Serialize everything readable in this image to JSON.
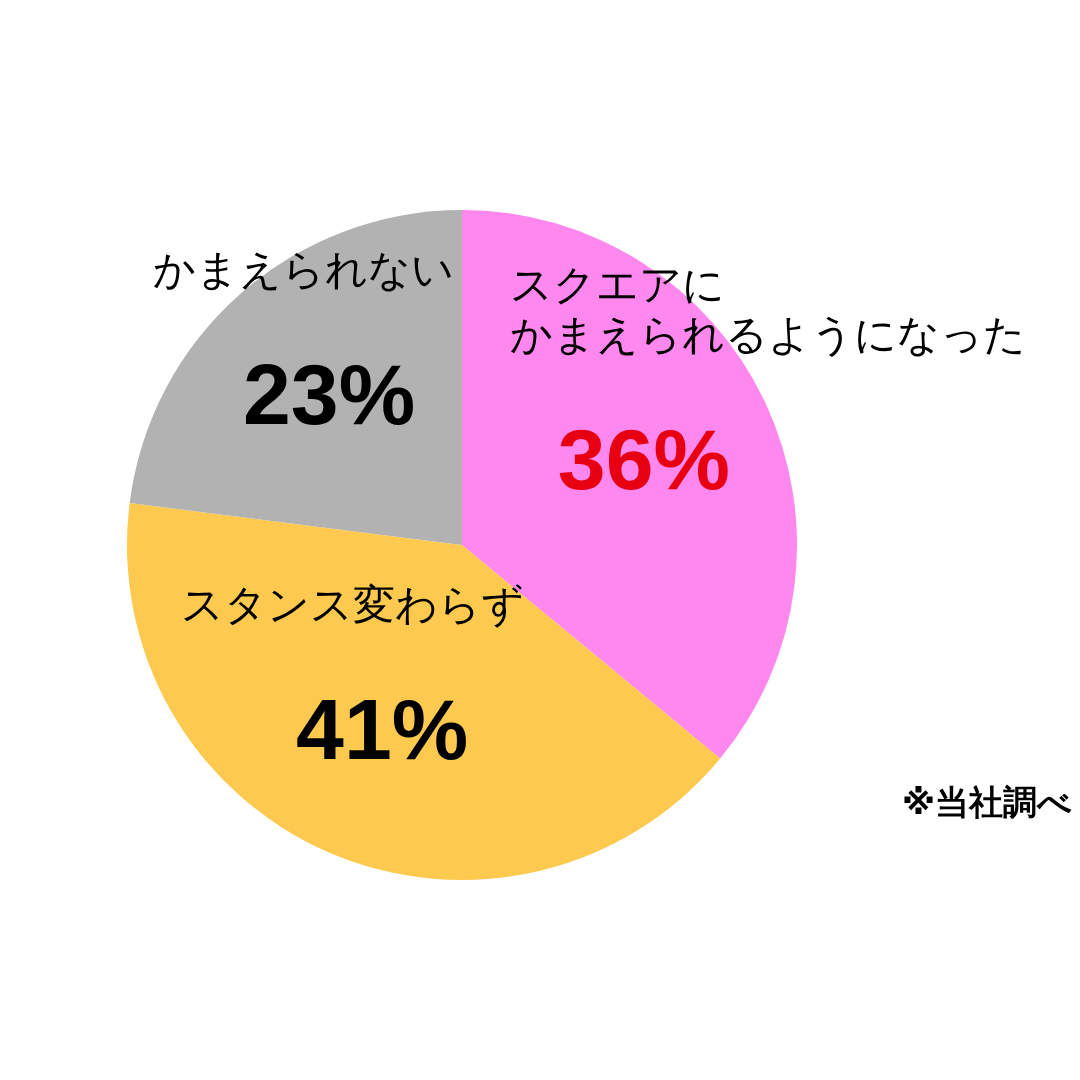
{
  "chart_data": {
    "type": "pie",
    "categories": [
      "スクエアにかまえられるようになった",
      "スタンス変わらず",
      "かまえられない"
    ],
    "values": [
      36,
      41,
      23
    ],
    "colors": [
      "#ff88ee",
      "#fdc94f",
      "#b2b2b2"
    ],
    "value_labels": [
      "36%",
      "41%",
      "23%"
    ],
    "annotations": [
      "※当社調べ"
    ]
  }
}
